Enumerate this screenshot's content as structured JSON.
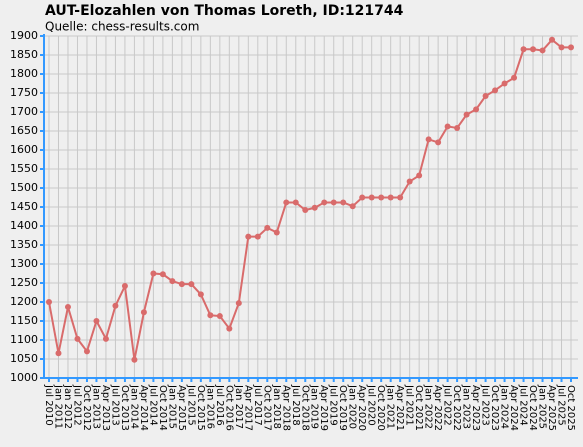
{
  "chart_data": {
    "type": "line",
    "title": "AUT-Elozahlen von Thomas Loreth, ID:121744",
    "subtitle": "Quelle: chess-results.com",
    "categories": [
      "Jul 2010",
      "Jan 2011",
      "Jan 2012",
      "Jul 2012",
      "Oct 2012",
      "Jan 2013",
      "Apr 2013",
      "Jul 2013",
      "Oct 2013",
      "Jan 2014",
      "Apr 2014",
      "Jul 2014",
      "Oct 2014",
      "Jan 2015",
      "Apr 2015",
      "Jul 2015",
      "Oct 2015",
      "Jan 2016",
      "Jul 2016",
      "Oct 2016",
      "Jan 2017",
      "Apr 2017",
      "Jul 2017",
      "Oct 2017",
      "Jan 2018",
      "Apr 2018",
      "Jul 2018",
      "Oct 2018",
      "Jan 2019",
      "Apr 2019",
      "Jul 2019",
      "Oct 2019",
      "Jan 2020",
      "Apr 2020",
      "Jul 2020",
      "Oct 2020",
      "Jan 2021",
      "Apr 2021",
      "Jul 2021",
      "Oct 2021",
      "Jan 2022",
      "Apr 2022",
      "Jul 2022",
      "Oct 2022",
      "Jan 2023",
      "Apr 2023",
      "Jul 2023",
      "Oct 2023",
      "Jan 2024",
      "Apr 2024",
      "Jul 2024",
      "Oct 2024",
      "Jan 2025",
      "Apr 2025",
      "Jul 2025",
      "Oct 2025"
    ],
    "values": [
      1200,
      1065,
      1187,
      1103,
      1070,
      1150,
      1103,
      1190,
      1242,
      1048,
      1173,
      1275,
      1273,
      1255,
      1247,
      1247,
      1220,
      1165,
      1163,
      1130,
      1197,
      1372,
      1372,
      1395,
      1383,
      1462,
      1462,
      1442,
      1448,
      1462,
      1462,
      1462,
      1452,
      1475,
      1475,
      1475,
      1475,
      1475,
      1517,
      1533,
      1628,
      1620,
      1662,
      1658,
      1693,
      1707,
      1742,
      1757,
      1775,
      1790,
      1865,
      1865,
      1862,
      1890,
      1870,
      1870
    ],
    "color": "#d96b6b",
    "ylim": [
      1000,
      1900
    ],
    "yticks": [
      1000,
      1050,
      1100,
      1150,
      1200,
      1250,
      1300,
      1350,
      1400,
      1450,
      1500,
      1550,
      1600,
      1650,
      1700,
      1750,
      1800,
      1850,
      1900
    ],
    "grid": true
  }
}
